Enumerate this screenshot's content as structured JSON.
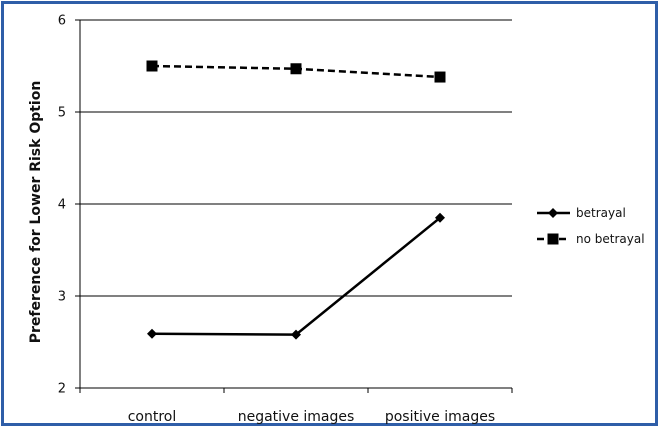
{
  "chart_data": {
    "type": "line",
    "title": "",
    "xlabel": "",
    "ylabel": "Preference for Lower Risk Option",
    "categories": [
      "control",
      "negative images",
      "positive images"
    ],
    "ylim": [
      2,
      6
    ],
    "yticks": [
      2,
      3,
      4,
      5,
      6
    ],
    "grid": true,
    "legend_position": "right",
    "series": [
      {
        "name": "betrayal",
        "values": [
          2.59,
          2.58,
          3.85
        ],
        "line_style": "solid",
        "marker": "diamond",
        "color": "#000000"
      },
      {
        "name": "no betrayal",
        "values": [
          5.5,
          5.47,
          5.38
        ],
        "line_style": "dashed",
        "marker": "square",
        "color": "#000000"
      }
    ]
  },
  "colors": {
    "frame_border": "#2f5ea8",
    "axis": "#000000",
    "gridline": "#000000"
  }
}
